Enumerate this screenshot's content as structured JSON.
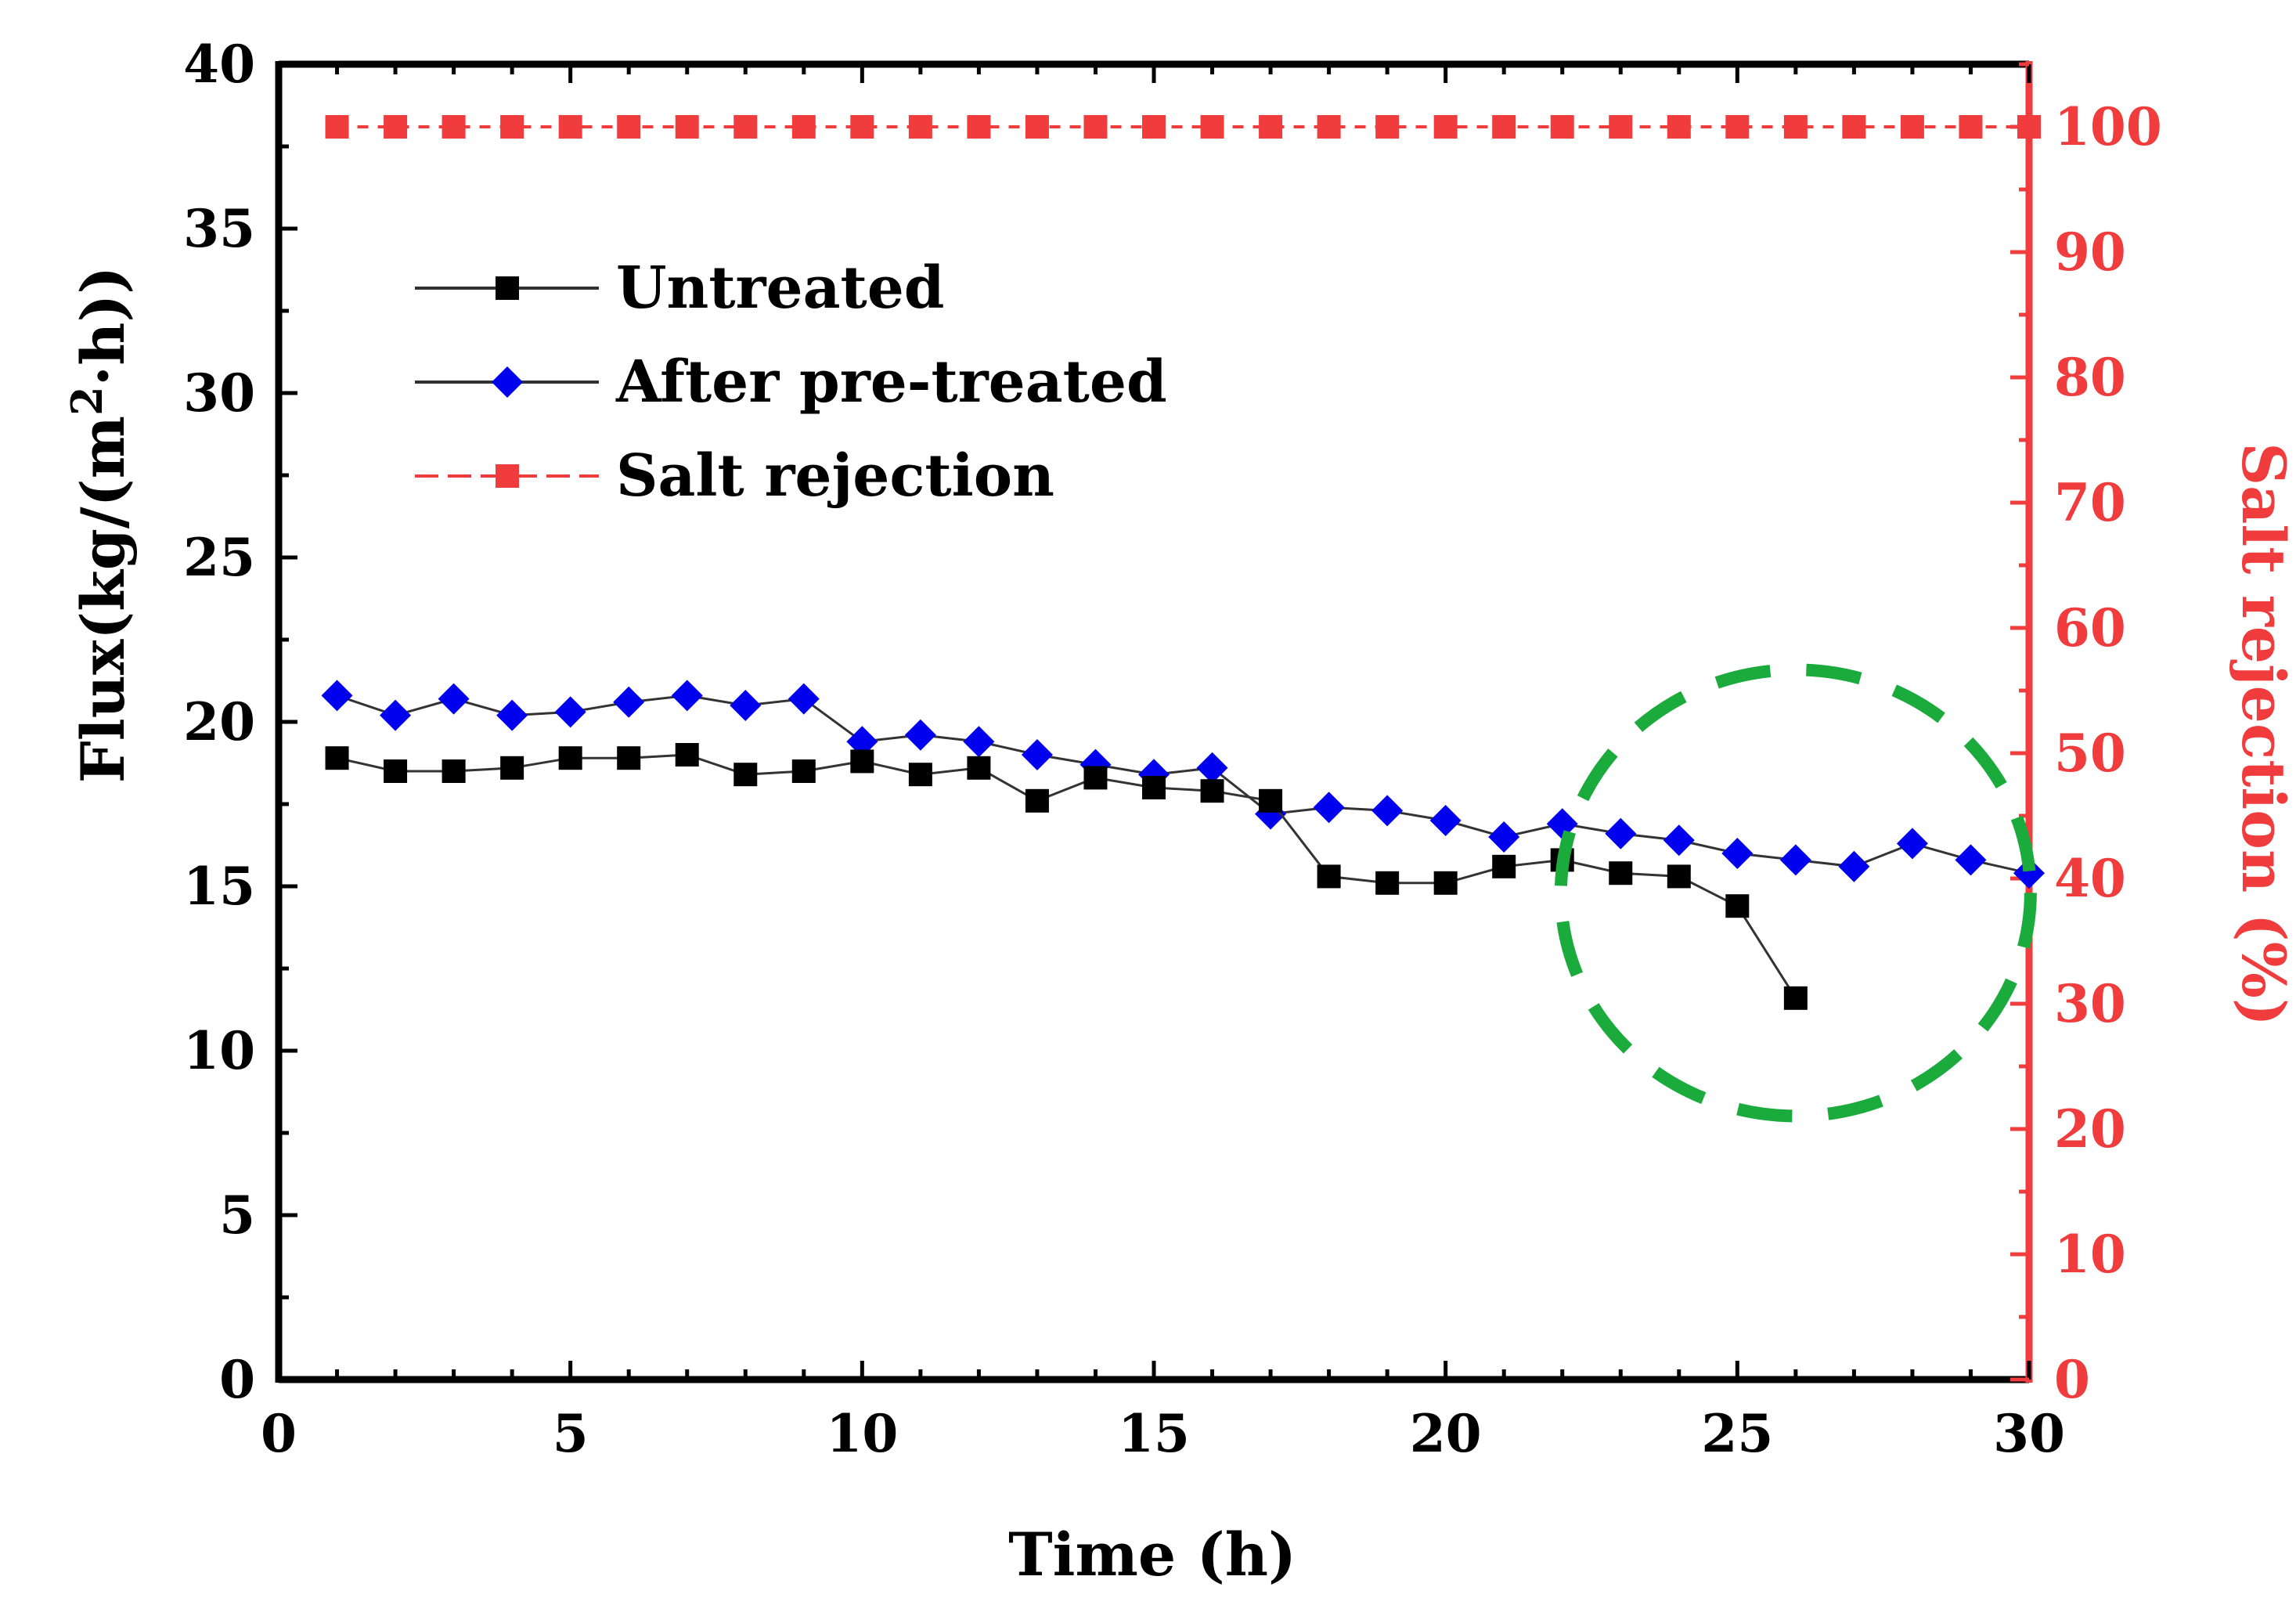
{
  "chart_data": {
    "type": "line",
    "xlabel": "Time (h)",
    "ylabel_left": {
      "main": "Flux(kg/(m",
      "sup": "2",
      "tail": "·h))"
    },
    "ylabel_right": "Salt rejection (%)",
    "xlim": [
      0,
      30
    ],
    "xticks": [
      0,
      5,
      10,
      15,
      20,
      25,
      30
    ],
    "ylim_left": [
      0,
      40
    ],
    "yticks_left": [
      0,
      5,
      10,
      15,
      20,
      25,
      30,
      35,
      40
    ],
    "ylim_right": [
      0,
      105
    ],
    "yticks_right": [
      0,
      10,
      20,
      30,
      40,
      50,
      60,
      70,
      80,
      90,
      100
    ],
    "grid": false,
    "legend_position": "top-left",
    "series": [
      {
        "name": "Untreated",
        "axis": "left",
        "color": "#000000",
        "marker": "square",
        "x": [
          1,
          2,
          3,
          4,
          5,
          6,
          7,
          8,
          9,
          10,
          11,
          12,
          13,
          14,
          15,
          16,
          17,
          18,
          19,
          20,
          21,
          22,
          23,
          24,
          25,
          26
        ],
        "values": [
          18.9,
          18.5,
          18.5,
          18.6,
          18.9,
          18.9,
          19.0,
          18.4,
          18.5,
          18.8,
          18.4,
          18.6,
          17.6,
          18.3,
          18.0,
          17.9,
          17.6,
          15.3,
          15.1,
          15.1,
          15.6,
          15.8,
          15.4,
          15.3,
          14.4,
          11.6
        ]
      },
      {
        "name": "After pre-treated",
        "axis": "left",
        "color": "#0000ee",
        "marker": "diamond",
        "x": [
          1,
          2,
          3,
          4,
          5,
          6,
          7,
          8,
          9,
          10,
          11,
          12,
          13,
          14,
          15,
          16,
          17,
          18,
          19,
          20,
          21,
          22,
          23,
          24,
          25,
          26,
          27,
          28,
          29,
          30
        ],
        "values": [
          20.8,
          20.2,
          20.7,
          20.2,
          20.3,
          20.6,
          20.8,
          20.5,
          20.7,
          19.4,
          19.6,
          19.4,
          19.0,
          18.7,
          18.4,
          18.6,
          17.2,
          17.4,
          17.3,
          17.0,
          16.5,
          16.9,
          16.6,
          16.4,
          16.0,
          15.8,
          15.6,
          16.3,
          15.8,
          15.4
        ]
      },
      {
        "name": "Salt rejection",
        "axis": "right",
        "color": "#f03c3c",
        "marker": "square",
        "x": [
          1,
          2,
          3,
          4,
          5,
          6,
          7,
          8,
          9,
          10,
          11,
          12,
          13,
          14,
          15,
          16,
          17,
          18,
          19,
          20,
          21,
          22,
          23,
          24,
          25,
          26,
          27,
          28,
          29,
          30
        ],
        "values": [
          100,
          100,
          100,
          100,
          100,
          100,
          100,
          100,
          100,
          100,
          100,
          100,
          100,
          100,
          100,
          100,
          100,
          100,
          100,
          100,
          100,
          100,
          100,
          100,
          100,
          100,
          100,
          100,
          100,
          100
        ]
      }
    ],
    "annotation": {
      "type": "dashed-ellipse",
      "color": "#1aab3c",
      "center_x": 26,
      "center_y_left": 14.8
    },
    "colors": {
      "axis": "#000000",
      "right_axis": "#f03c3c"
    }
  }
}
